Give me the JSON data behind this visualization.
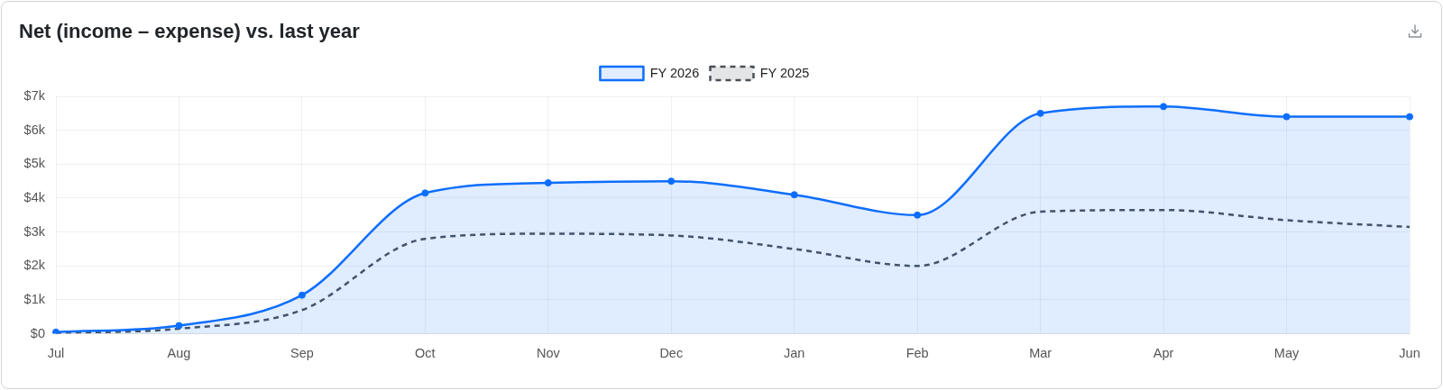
{
  "chart_data": {
    "type": "line",
    "title": "Net (income – expense) vs. last year",
    "categories": [
      "Jul",
      "Aug",
      "Sep",
      "Oct",
      "Nov",
      "Dec",
      "Jan",
      "Feb",
      "Mar",
      "Apr",
      "May",
      "Jun"
    ],
    "series": [
      {
        "name": "FY 2026",
        "type": "area",
        "color": "#0d6efd",
        "values": [
          50,
          240,
          1140,
          4150,
          4450,
          4500,
          4100,
          3500,
          6500,
          6700,
          6400,
          6400
        ]
      },
      {
        "name": "FY 2025",
        "type": "line",
        "color": "#495057",
        "line_style": "dashed",
        "marker": "none",
        "values": [
          20,
          150,
          700,
          2800,
          2950,
          2900,
          2500,
          2000,
          3600,
          3650,
          3350,
          3150
        ]
      }
    ],
    "ylim": [
      0,
      7000
    ],
    "yticks": [
      {
        "value": 0,
        "label": "$0"
      },
      {
        "value": 1000,
        "label": "$1k"
      },
      {
        "value": 2000,
        "label": "$2k"
      },
      {
        "value": 3000,
        "label": "$3k"
      },
      {
        "value": 4000,
        "label": "$4k"
      },
      {
        "value": 5000,
        "label": "$5k"
      },
      {
        "value": 6000,
        "label": "$6k"
      },
      {
        "value": 7000,
        "label": "$7k"
      }
    ],
    "grid": true,
    "legend": "top",
    "marker": "circle"
  }
}
